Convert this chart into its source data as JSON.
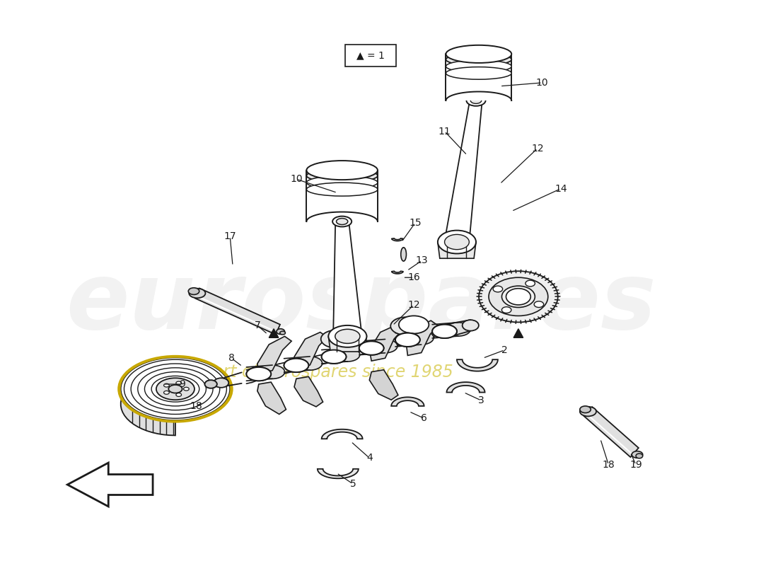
{
  "background_color": "#ffffff",
  "line_color": "#1a1a1a",
  "legend_text": "▲ = 1",
  "watermark_color": "#cccccc",
  "watermark_yellow": "#c8b400",
  "annotations": [
    [
      "10",
      395,
      248,
      455,
      268
    ],
    [
      "10",
      755,
      107,
      693,
      112
    ],
    [
      "11",
      612,
      178,
      645,
      213
    ],
    [
      "12",
      748,
      203,
      693,
      255
    ],
    [
      "12",
      567,
      432,
      536,
      462
    ],
    [
      "13",
      579,
      367,
      557,
      382
    ],
    [
      "14",
      782,
      262,
      710,
      295
    ],
    [
      "15",
      569,
      312,
      549,
      340
    ],
    [
      "16",
      567,
      392,
      551,
      392
    ],
    [
      "17",
      298,
      332,
      302,
      375
    ],
    [
      "18",
      248,
      580,
      258,
      575
    ],
    [
      "18",
      852,
      666,
      840,
      628
    ],
    [
      "19",
      892,
      666,
      884,
      648
    ],
    [
      "2",
      700,
      498,
      668,
      510
    ],
    [
      "3",
      666,
      572,
      640,
      560
    ],
    [
      "4",
      502,
      656,
      475,
      632
    ],
    [
      "5",
      478,
      694,
      454,
      678
    ],
    [
      "6",
      582,
      598,
      560,
      588
    ],
    [
      "7",
      338,
      462,
      353,
      475
    ],
    [
      "8",
      300,
      510,
      316,
      522
    ],
    [
      "9",
      228,
      548,
      200,
      548
    ]
  ]
}
